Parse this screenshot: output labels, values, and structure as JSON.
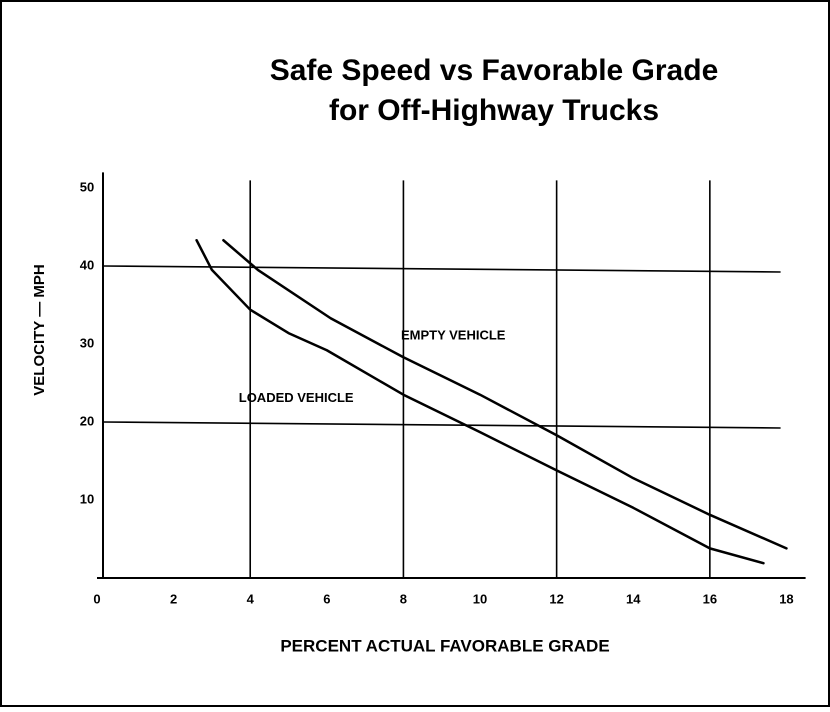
{
  "chart_data": {
    "type": "line",
    "title": [
      "Safe Speed vs Favorable Grade",
      "for Off-Highway Trucks"
    ],
    "xlabel": "PERCENT ACTUAL FAVORABLE GRADE",
    "ylabel": "VELOCITY — MPH",
    "xlim": [
      0,
      18.5
    ],
    "ylim": [
      0,
      52
    ],
    "xticks": [
      0,
      2,
      4,
      6,
      8,
      10,
      12,
      14,
      16,
      18
    ],
    "yticks": [
      10,
      20,
      30,
      40,
      50
    ],
    "grid_x": [
      4,
      8,
      12,
      16
    ],
    "grid_y": [
      20,
      40
    ],
    "series": [
      {
        "name": "EMPTY VEHICLE",
        "color": "#000000",
        "x": [
          3.3,
          4.2,
          6.1,
          8,
          10,
          12,
          14,
          16,
          18
        ],
        "values": [
          43.3,
          39.5,
          33.3,
          28.3,
          23.5,
          18.3,
          12.8,
          8.1,
          3.8
        ]
      },
      {
        "name": "LOADED VEHICLE",
        "color": "#000000",
        "x": [
          2.6,
          3,
          4,
          5,
          6,
          8,
          10,
          12,
          14,
          16,
          17.4
        ],
        "values": [
          43.3,
          39.5,
          34.4,
          31.4,
          29.2,
          23.5,
          18.7,
          13.8,
          9.0,
          3.8,
          1.9
        ]
      }
    ],
    "annotations": [
      {
        "text": "EMPTY VEHICLE",
        "x": 9.3,
        "y": 31
      },
      {
        "text": "LOADED VEHICLE",
        "x": 5.2,
        "y": 23
      }
    ]
  }
}
